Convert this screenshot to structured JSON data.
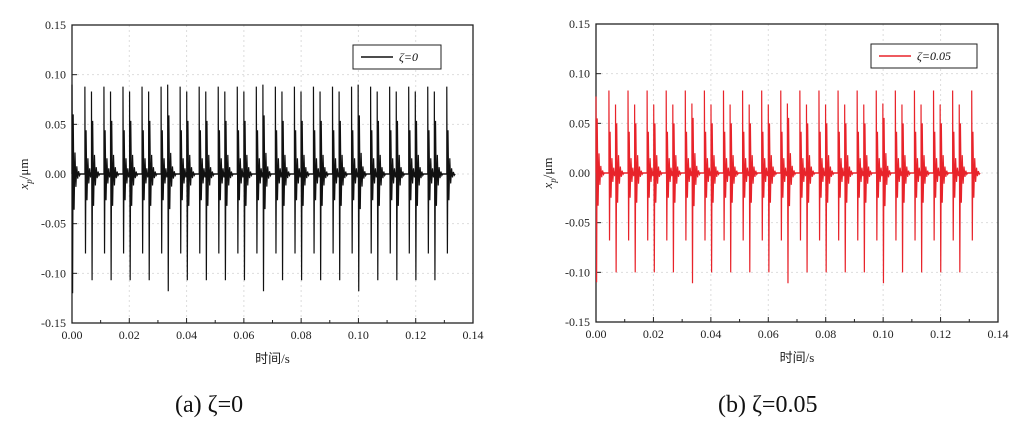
{
  "chart_data": [
    {
      "type": "line",
      "caption": "(a) ζ=0",
      "xlabel": "时间/s",
      "ylabel": "x_p/μm",
      "ylabel_main": "x",
      "ylabel_sub": "p",
      "ylabel_unit": "/μm",
      "xlim": [
        0,
        0.14
      ],
      "ylim": [
        -0.15,
        0.15
      ],
      "xticks": [
        "0.00",
        "0.02",
        "0.04",
        "0.06",
        "0.08",
        "0.10",
        "0.12",
        "0.14"
      ],
      "yticks": [
        "0.15",
        "0.10",
        "0.05",
        "0.00",
        "-0.05",
        "-0.10",
        "-0.15"
      ],
      "grid": true,
      "legend": {
        "label": "ζ=0",
        "placement": "top-right"
      },
      "color": "#111111",
      "series": {
        "name": "ζ=0",
        "end_time": 0.133,
        "initial_spike": {
          "t": 0.0,
          "max": 0.09,
          "min": -0.12
        },
        "pulse_period": 0.00665,
        "pulse_count": 20,
        "first_pulse": 0.0045,
        "second_spike_offset": 0.0023,
        "spike1": {
          "max": 0.088,
          "min": -0.08
        },
        "spike2": {
          "max": 0.083,
          "min": -0.107
        },
        "large_cycles": [
          4,
          9,
          14
        ],
        "large_spike2": {
          "max": 0.09,
          "min": -0.118
        }
      }
    },
    {
      "type": "line",
      "caption": "(b) ζ=0.05",
      "xlabel": "时间/s",
      "ylabel": "x_p/μm",
      "ylabel_main": "x",
      "ylabel_sub": "p",
      "ylabel_unit": "/μm",
      "xlim": [
        0,
        0.14
      ],
      "ylim": [
        -0.15,
        0.15
      ],
      "xticks": [
        "0.00",
        "0.02",
        "0.04",
        "0.06",
        "0.08",
        "0.10",
        "0.12",
        "0.14"
      ],
      "yticks": [
        "0.15",
        "0.10",
        "0.05",
        "0.00",
        "-0.05",
        "-0.10",
        "-0.15"
      ],
      "grid": true,
      "legend": {
        "label": "ζ=0.05",
        "placement": "top-right"
      },
      "color": "#e8232a",
      "series": {
        "name": "ζ=0.05",
        "end_time": 0.133,
        "initial_spike": {
          "t": 0.0,
          "max": 0.077,
          "min": -0.11
        },
        "pulse_period": 0.00665,
        "pulse_count": 20,
        "first_pulse": 0.0045,
        "second_spike_offset": 0.0023,
        "spike1": {
          "max": 0.083,
          "min": -0.068
        },
        "spike2": {
          "max": 0.069,
          "min": -0.1
        },
        "large_cycles": [
          4,
          9,
          14
        ],
        "large_spike2": {
          "max": 0.07,
          "min": -0.111
        }
      }
    }
  ]
}
